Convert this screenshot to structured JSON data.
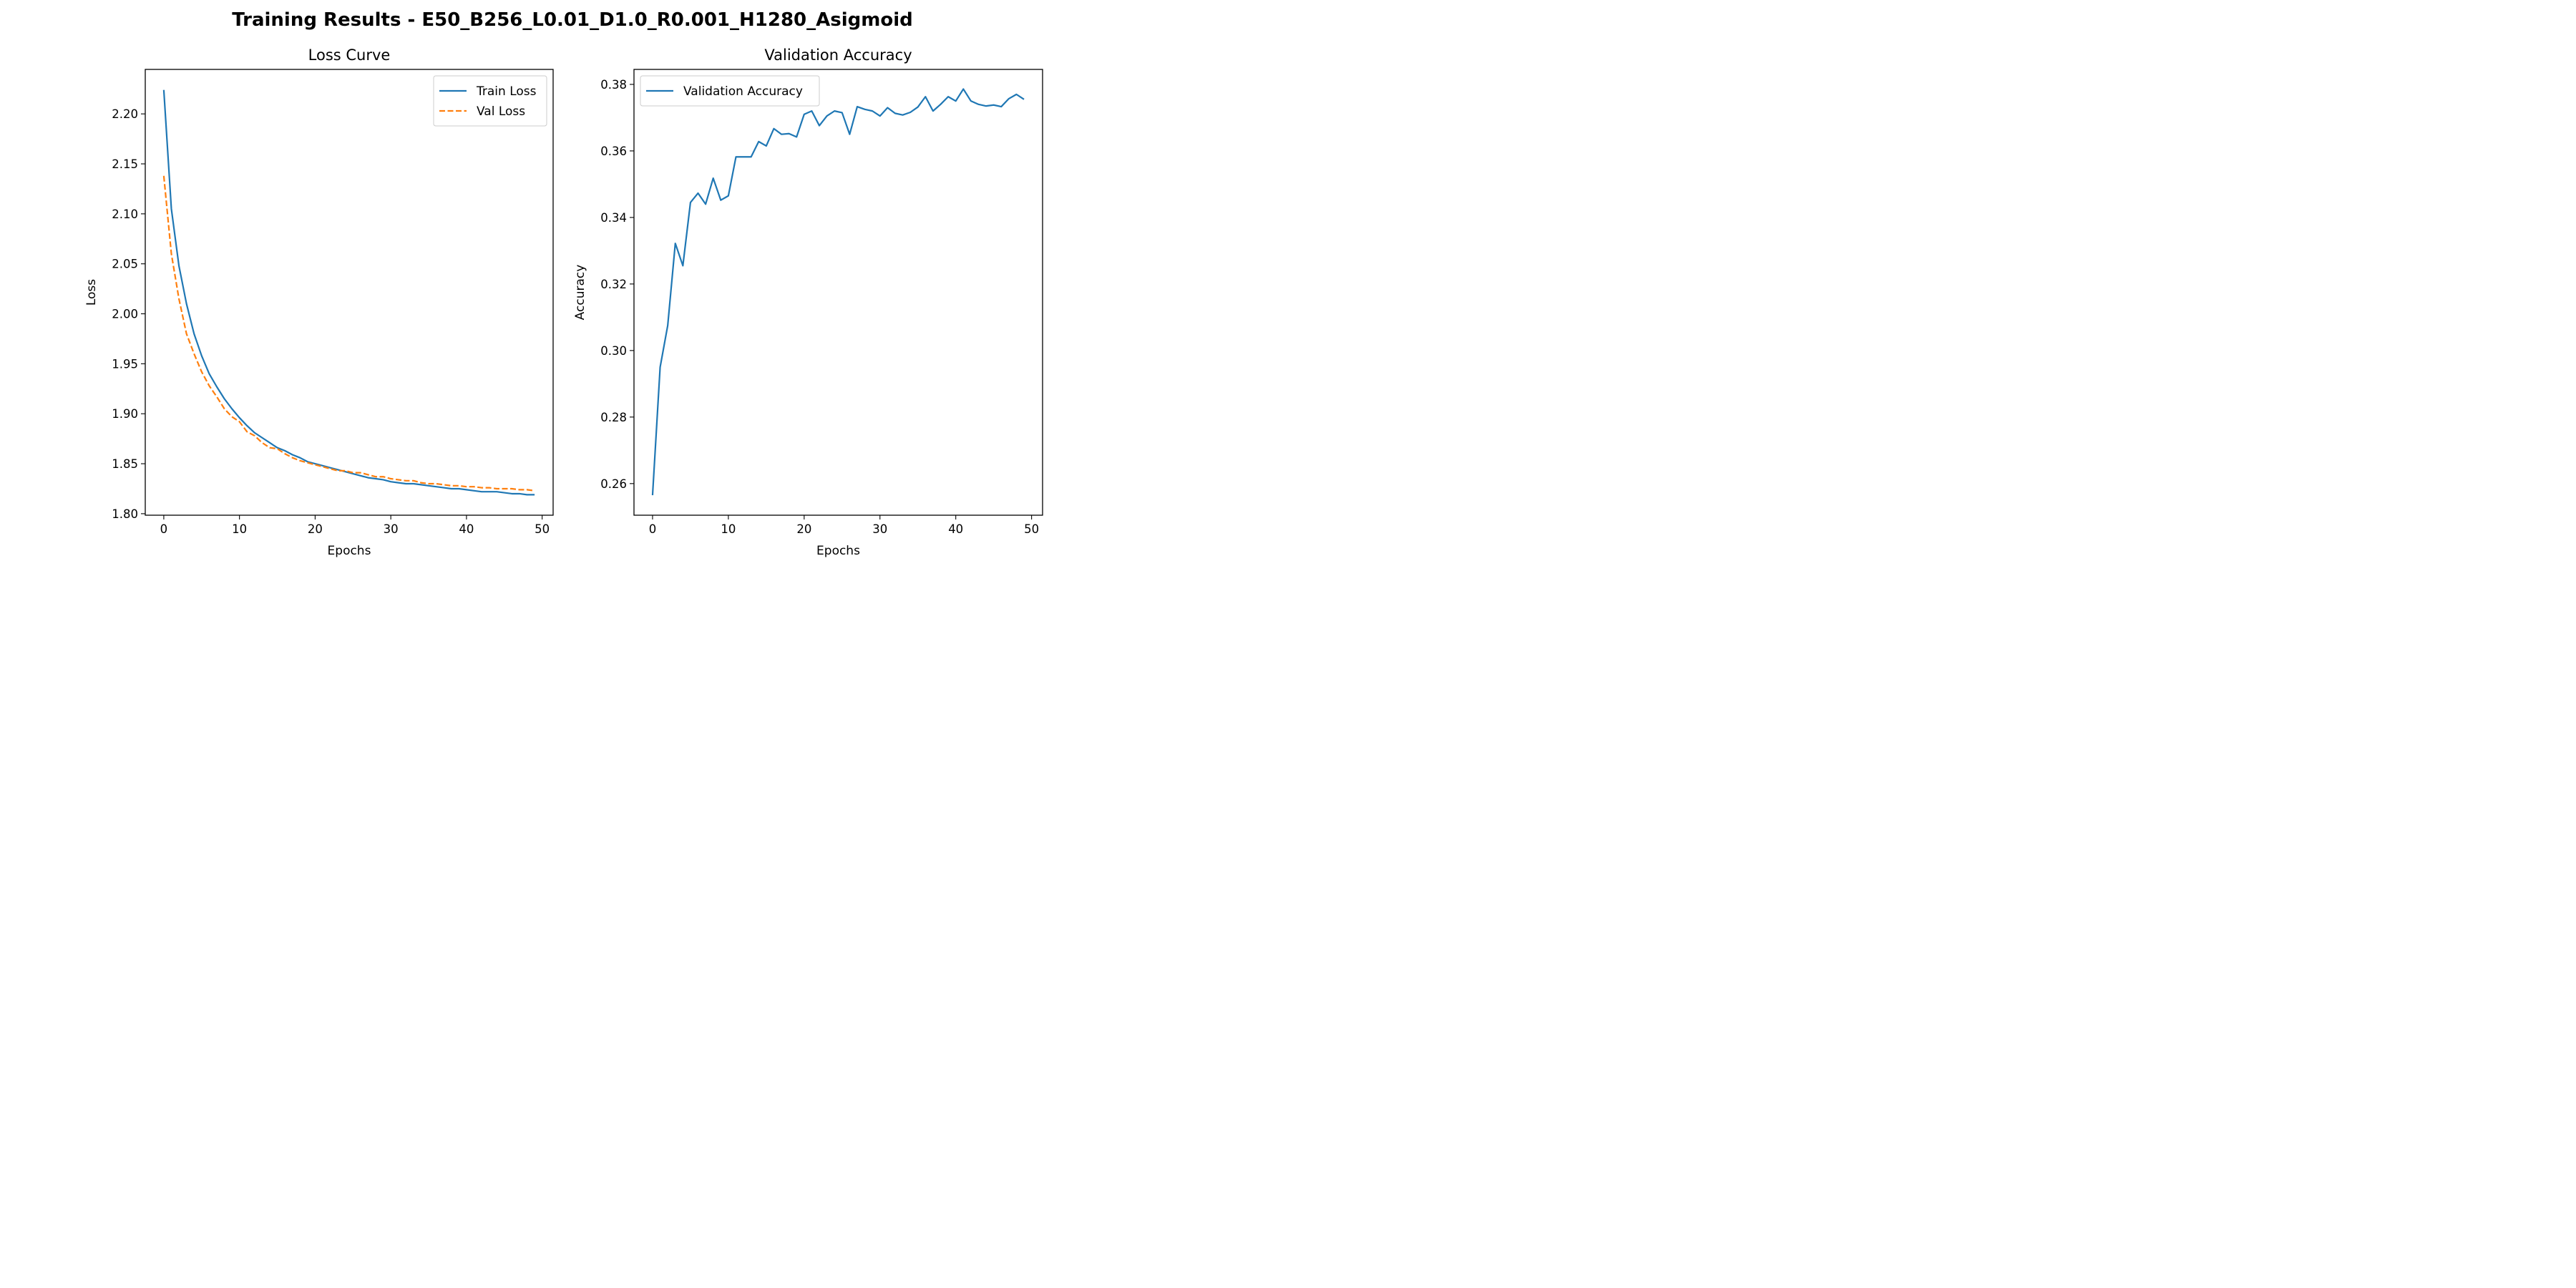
{
  "suptitle": "Training Results - E50_B256_L0.01_D1.0_R0.001_H1280_Asigmoid",
  "colors": {
    "train": "#1f77b4",
    "val": "#ff7f0e",
    "accuracy": "#1f77b4"
  },
  "chart_data": [
    {
      "type": "line",
      "title": "Loss Curve",
      "xlabel": "Epochs",
      "ylabel": "Loss",
      "xlim": [
        -2.45,
        51.45
      ],
      "ylim": [
        1.7985,
        2.2445
      ],
      "xticks": [
        0,
        10,
        20,
        30,
        40,
        50
      ],
      "yticks": [
        1.8,
        1.85,
        1.9,
        1.95,
        2.0,
        2.05,
        2.1,
        2.15,
        2.2
      ],
      "ytick_labels": [
        "1.80",
        "1.85",
        "1.90",
        "1.95",
        "2.00",
        "2.05",
        "2.10",
        "2.15",
        "2.20"
      ],
      "grid": false,
      "legend": "top-right",
      "x": [
        0,
        1,
        2,
        3,
        4,
        5,
        6,
        7,
        8,
        9,
        10,
        11,
        12,
        13,
        14,
        15,
        16,
        17,
        18,
        19,
        20,
        21,
        22,
        23,
        24,
        25,
        26,
        27,
        28,
        29,
        30,
        31,
        32,
        33,
        34,
        35,
        36,
        37,
        38,
        39,
        40,
        41,
        42,
        43,
        44,
        45,
        46,
        47,
        48,
        49
      ],
      "series": [
        {
          "name": "Train Loss",
          "style": "solid",
          "color": "#1f77b4",
          "values": [
            2.224,
            2.105,
            2.048,
            2.01,
            1.98,
            1.958,
            1.94,
            1.927,
            1.915,
            1.905,
            1.896,
            1.888,
            1.881,
            1.876,
            1.871,
            1.866,
            1.863,
            1.859,
            1.856,
            1.852,
            1.85,
            1.848,
            1.846,
            1.844,
            1.842,
            1.84,
            1.838,
            1.836,
            1.835,
            1.834,
            1.832,
            1.831,
            1.83,
            1.83,
            1.829,
            1.828,
            1.827,
            1.826,
            1.825,
            1.825,
            1.824,
            1.823,
            1.822,
            1.822,
            1.822,
            1.821,
            1.82,
            1.82,
            1.819,
            1.819
          ]
        },
        {
          "name": "Val Loss",
          "style": "dashed",
          "color": "#ff7f0e",
          "values": [
            2.138,
            2.06,
            2.015,
            1.98,
            1.96,
            1.942,
            1.928,
            1.917,
            1.905,
            1.897,
            1.892,
            1.882,
            1.878,
            1.871,
            1.866,
            1.865,
            1.86,
            1.856,
            1.853,
            1.851,
            1.849,
            1.847,
            1.845,
            1.843,
            1.843,
            1.841,
            1.841,
            1.839,
            1.837,
            1.837,
            1.835,
            1.834,
            1.833,
            1.833,
            1.831,
            1.83,
            1.83,
            1.829,
            1.828,
            1.828,
            1.827,
            1.827,
            1.826,
            1.826,
            1.825,
            1.825,
            1.825,
            1.824,
            1.824,
            1.823
          ]
        }
      ]
    },
    {
      "type": "line",
      "title": "Validation Accuracy",
      "xlabel": "Epochs",
      "ylabel": "Accuracy",
      "xlim": [
        -2.45,
        51.45
      ],
      "ylim": [
        0.2505,
        0.3845
      ],
      "xticks": [
        0,
        10,
        20,
        30,
        40,
        50
      ],
      "yticks": [
        0.26,
        0.28,
        0.3,
        0.32,
        0.34,
        0.36,
        0.38
      ],
      "ytick_labels": [
        "0.26",
        "0.28",
        "0.30",
        "0.32",
        "0.34",
        "0.36",
        "0.38"
      ],
      "grid": false,
      "legend": "top-left",
      "x": [
        0,
        1,
        2,
        3,
        4,
        5,
        6,
        7,
        8,
        9,
        10,
        11,
        12,
        13,
        14,
        15,
        16,
        17,
        18,
        19,
        20,
        21,
        22,
        23,
        24,
        25,
        26,
        27,
        28,
        29,
        30,
        31,
        32,
        33,
        34,
        35,
        36,
        37,
        38,
        39,
        40,
        41,
        42,
        43,
        44,
        45,
        46,
        47,
        48,
        49
      ],
      "series": [
        {
          "name": "Validation Accuracy",
          "style": "solid",
          "color": "#1f77b4",
          "values": [
            0.2565,
            0.295,
            0.3075,
            0.3322,
            0.3255,
            0.3445,
            0.3473,
            0.344,
            0.3518,
            0.3452,
            0.3465,
            0.3582,
            0.3582,
            0.3582,
            0.3628,
            0.3615,
            0.3667,
            0.365,
            0.3652,
            0.3642,
            0.371,
            0.372,
            0.3676,
            0.3705,
            0.372,
            0.3715,
            0.365,
            0.3733,
            0.3725,
            0.372,
            0.3705,
            0.373,
            0.3713,
            0.3708,
            0.3716,
            0.3732,
            0.3763,
            0.372,
            0.374,
            0.3763,
            0.375,
            0.3786,
            0.375,
            0.374,
            0.3735,
            0.3738,
            0.3733,
            0.3757,
            0.377,
            0.3755
          ]
        }
      ]
    }
  ]
}
